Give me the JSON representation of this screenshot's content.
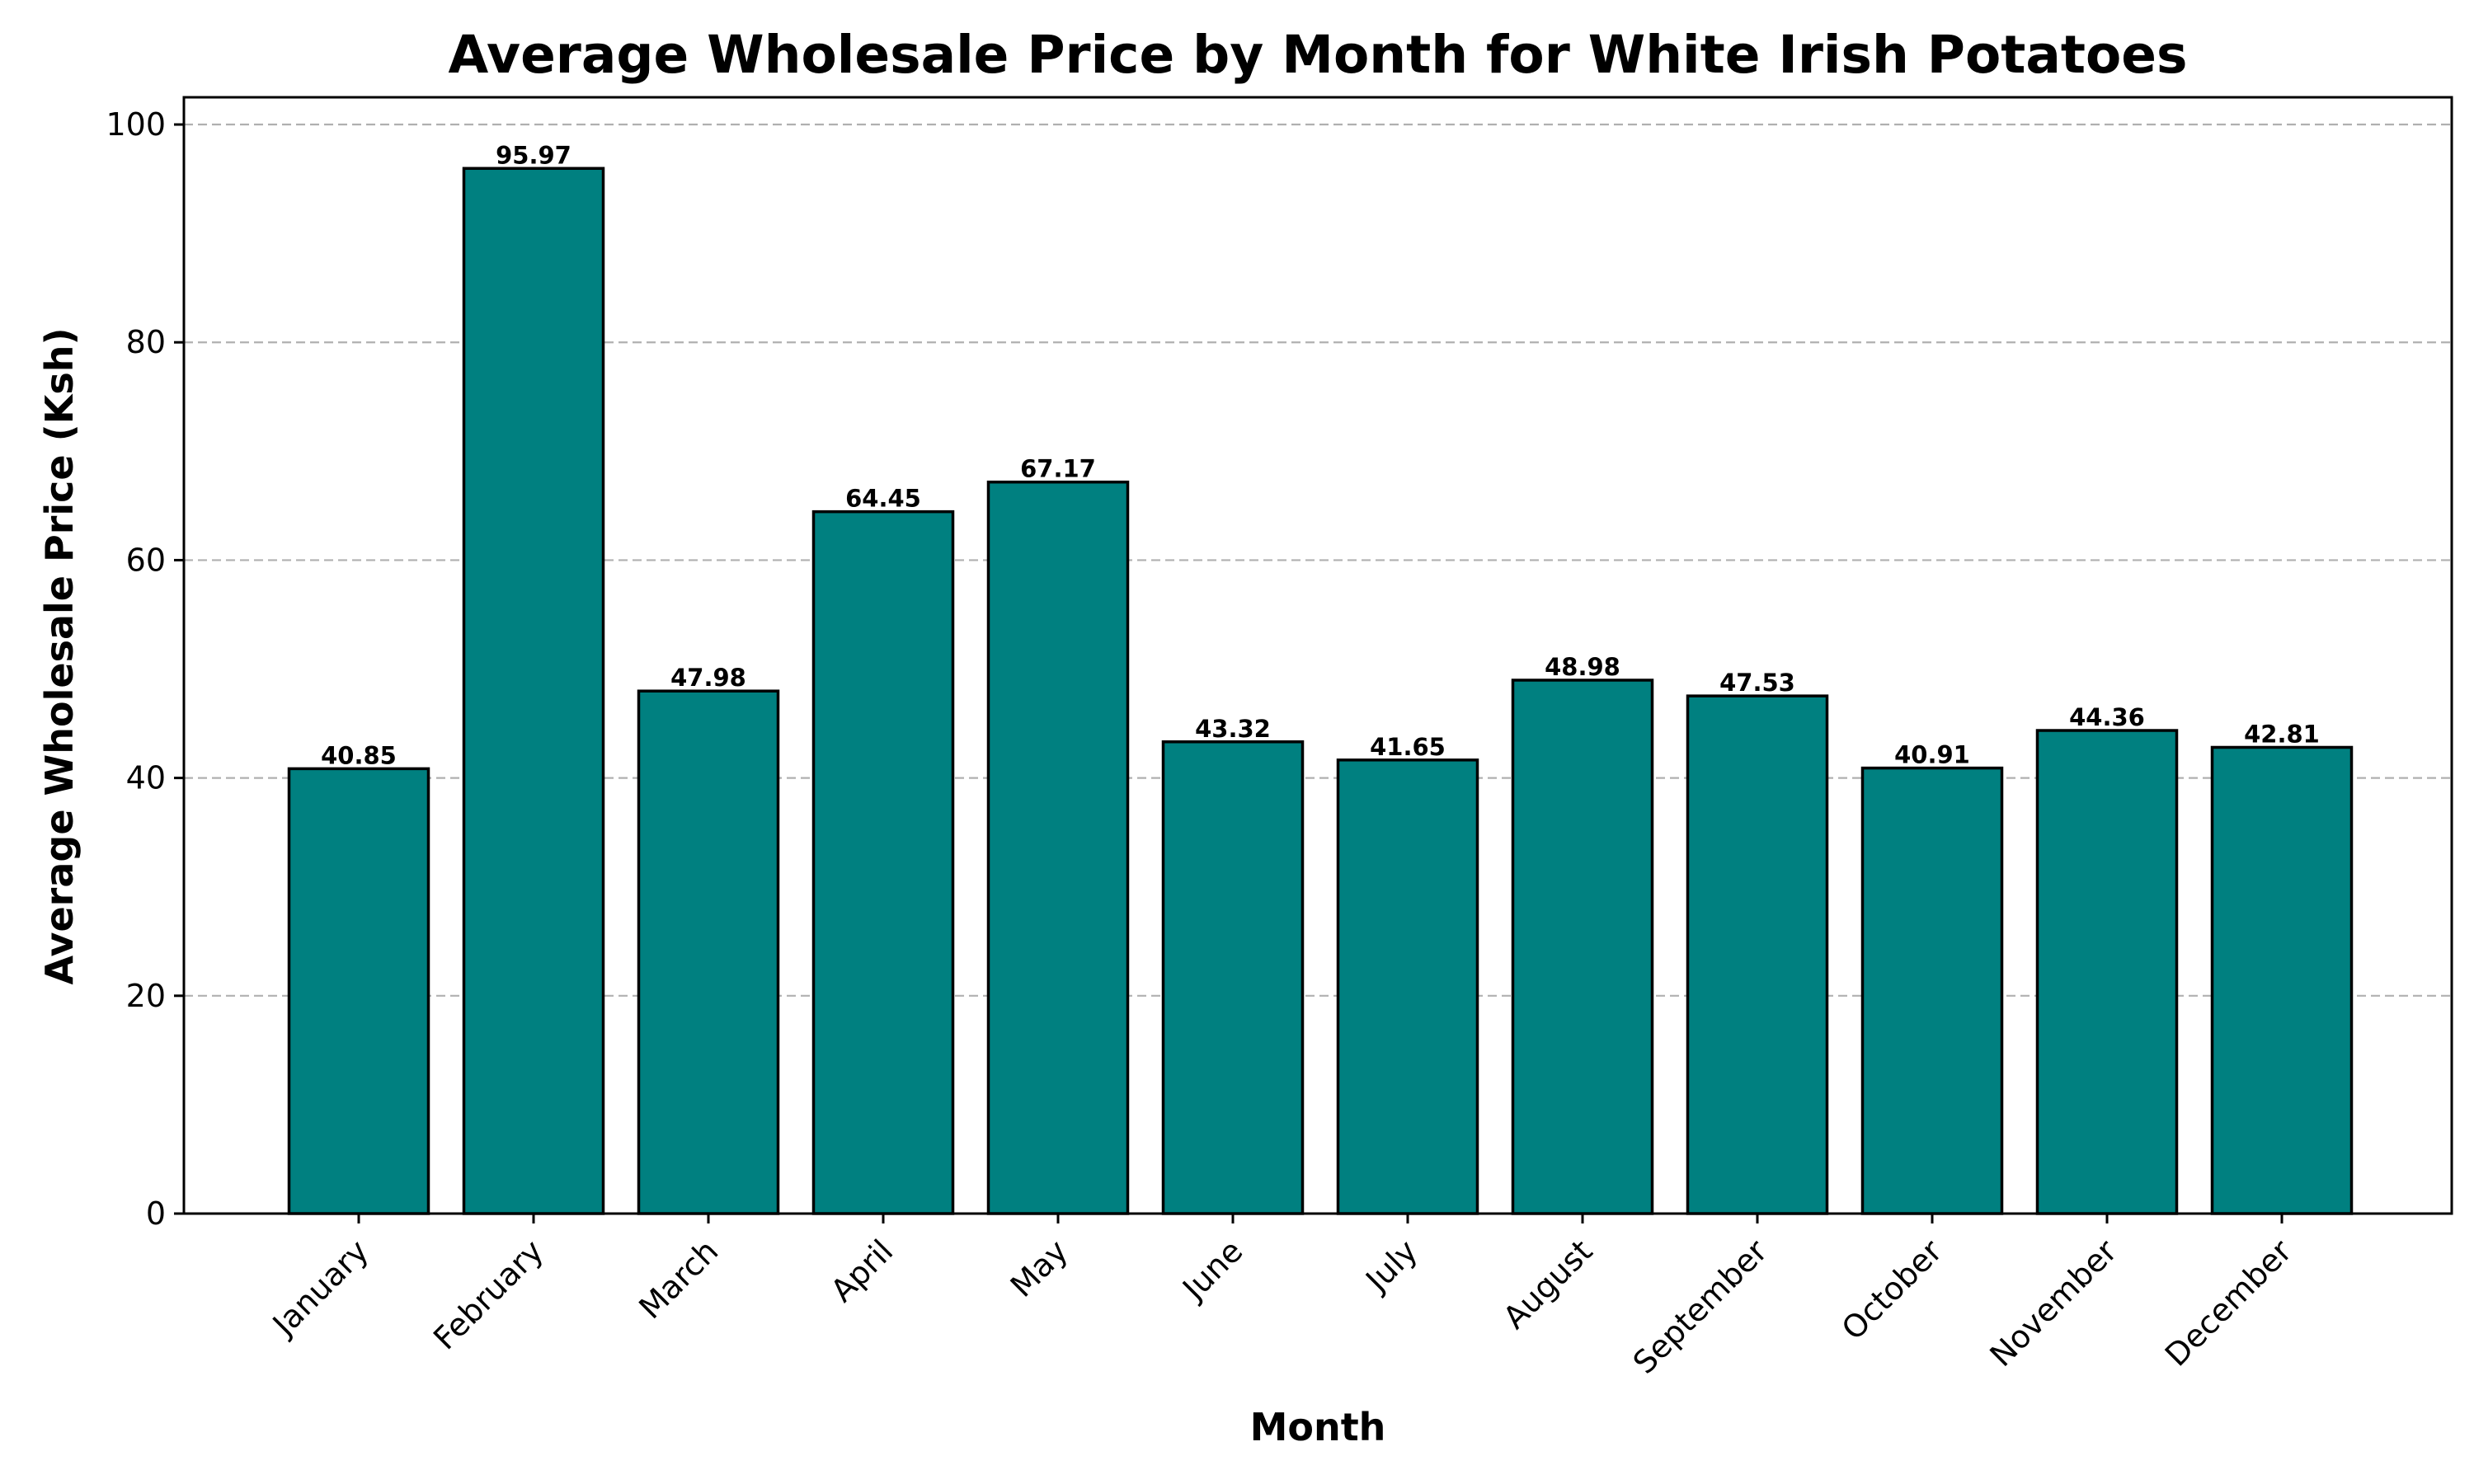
{
  "chart_data": {
    "type": "bar",
    "title": "Average Wholesale Price by Month for White Irish Potatoes",
    "xlabel": "Month",
    "ylabel": "Average Wholesale Price (Ksh)",
    "categories": [
      "January",
      "February",
      "March",
      "April",
      "May",
      "June",
      "July",
      "August",
      "September",
      "October",
      "November",
      "December"
    ],
    "values": [
      40.85,
      95.97,
      47.98,
      64.45,
      67.17,
      43.32,
      41.65,
      48.98,
      47.53,
      40.91,
      44.36,
      42.81
    ],
    "data_labels": [
      "40.85",
      "95.97",
      "47.98",
      "64.45",
      "67.17",
      "43.32",
      "41.65",
      "48.98",
      "47.53",
      "40.91",
      "44.36",
      "42.81"
    ],
    "ylim": [
      0,
      100
    ],
    "yticks": [
      0,
      20,
      40,
      60,
      80,
      100
    ],
    "ytick_labels": [
      "0",
      "20",
      "40",
      "60",
      "80",
      "100"
    ],
    "grid": "horizontal dashed",
    "bar_color": "#008080",
    "bar_edge_color": "#000000"
  }
}
